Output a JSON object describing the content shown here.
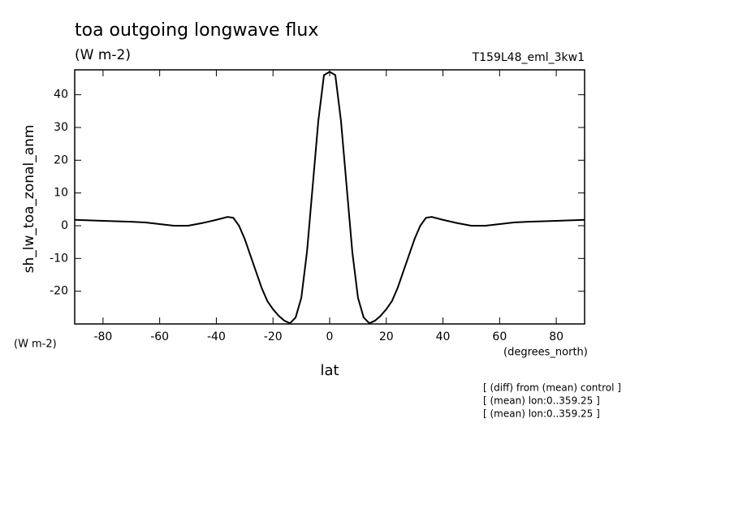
{
  "chart_data": {
    "type": "line",
    "title": "toa outgoing longwave flux",
    "subtitle": "(W m-2)",
    "run_label": "T159L48_eml_3kw1",
    "y_label": "sh_lw_toa_zonal_anm",
    "y_units": "(W m-2)",
    "x_label": "lat",
    "x_units": "(degrees_north)",
    "notes": [
      "[ (diff) from (mean) control ]",
      "[ (mean) lon:0..359.25 ]",
      "[ (mean) lon:0..359.25 ]"
    ],
    "color": "#000000",
    "x": [
      -90,
      -80,
      -70,
      -65,
      -60,
      -55,
      -50,
      -45,
      -40,
      -36,
      -34,
      -32,
      -30,
      -28,
      -26,
      -24,
      -22,
      -20,
      -18,
      -16,
      -14,
      -12,
      -10,
      -8,
      -6,
      -4,
      -2,
      0,
      2,
      4,
      6,
      8,
      10,
      12,
      14,
      16,
      18,
      20,
      22,
      24,
      26,
      28,
      30,
      32,
      34,
      36,
      40,
      45,
      50,
      55,
      60,
      65,
      70,
      80,
      90
    ],
    "values": [
      1.8,
      1.5,
      1.2,
      1.0,
      0.5,
      0,
      0,
      0.8,
      1.8,
      2.7,
      2.4,
      0,
      -4,
      -9,
      -14,
      -19,
      -23,
      -25.5,
      -27.5,
      -29,
      -29.8,
      -28,
      -22,
      -8,
      12,
      32,
      46,
      47,
      46,
      32,
      12,
      -8,
      -22,
      -28,
      -29.8,
      -29,
      -27.5,
      -25.5,
      -23,
      -19,
      -14,
      -9,
      -4,
      0,
      2.4,
      2.7,
      1.8,
      0.8,
      0,
      0,
      0.5,
      1.0,
      1.2,
      1.5,
      1.8
    ],
    "xlim": [
      -90,
      90
    ],
    "xticks": [
      -80,
      -60,
      -40,
      -20,
      0,
      20,
      40,
      60,
      80
    ],
    "ylim": [
      -30,
      47.6
    ],
    "yticks": [
      -20,
      -10,
      0,
      10,
      20,
      30,
      40
    ]
  }
}
